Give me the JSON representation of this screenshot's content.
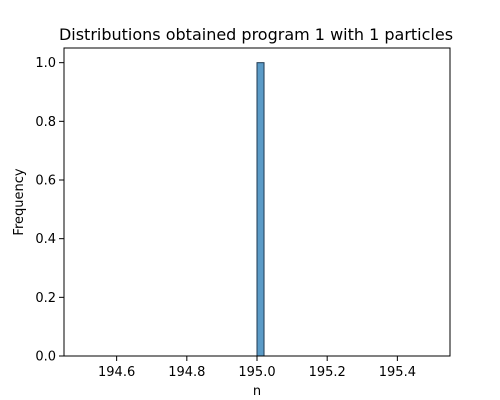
{
  "chart_data": {
    "type": "bar",
    "title": "Distributions obtained program 1 with 1 particles",
    "xlabel": "n",
    "ylabel": "Frequency",
    "xlim": [
      194.45,
      195.55
    ],
    "ylim": [
      0.0,
      1.05
    ],
    "x_ticks": [
      194.6,
      194.8,
      195.0,
      195.2,
      195.4
    ],
    "x_tick_labels": [
      "194.6",
      "194.8",
      "195.0",
      "195.2",
      "195.4"
    ],
    "y_ticks": [
      0.0,
      0.2,
      0.4,
      0.6,
      0.8,
      1.0
    ],
    "y_tick_labels": [
      "0.0",
      "0.2",
      "0.4",
      "0.6",
      "0.8",
      "1.0"
    ],
    "bins": [
      {
        "x_start": 195.0,
        "x_end": 195.02,
        "value": 1.0
      }
    ],
    "bar_color": "#5b9bc7",
    "bar_edge_color": "#1f3a52",
    "grid": false
  }
}
